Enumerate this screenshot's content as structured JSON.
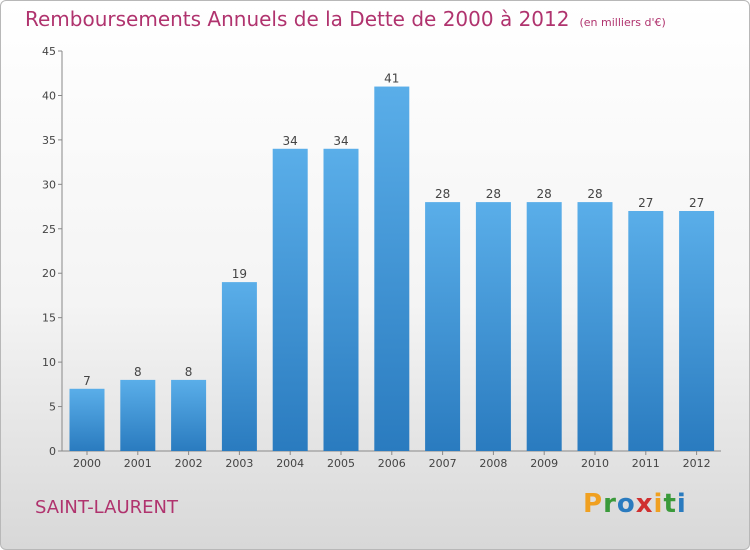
{
  "header": {
    "title": "Remboursements Annuels de la Dette de 2000 à 2012",
    "unit": "(en milliers d'€)"
  },
  "footer": {
    "place": "SAINT-LAURENT",
    "logo": "Proxiti"
  },
  "colors": {
    "title": "#b0336e",
    "bar_light": "#5aaee9",
    "bar_dark": "#2a7bbf"
  },
  "chart_data": {
    "type": "bar",
    "categories": [
      "2000",
      "2001",
      "2002",
      "2003",
      "2004",
      "2005",
      "2006",
      "2007",
      "2008",
      "2009",
      "2010",
      "2011",
      "2012"
    ],
    "values": [
      7,
      8,
      8,
      19,
      34,
      34,
      41,
      28,
      28,
      28,
      28,
      27,
      27
    ],
    "ylim": [
      0,
      45
    ],
    "yticks": [
      0,
      5,
      10,
      15,
      20,
      25,
      30,
      35,
      40,
      45
    ],
    "grid": false,
    "data_labels": true
  }
}
